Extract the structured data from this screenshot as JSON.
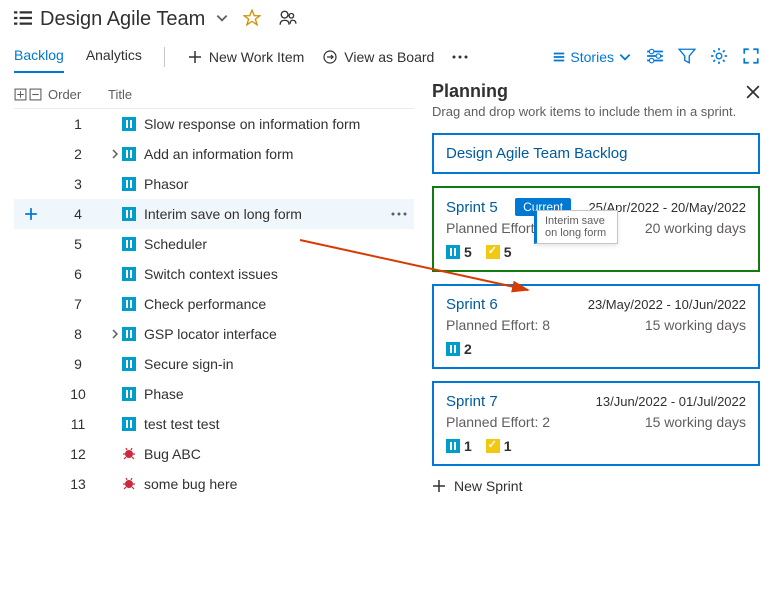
{
  "header": {
    "title": "Design Agile Team"
  },
  "tabs": {
    "backlog": "Backlog",
    "analytics": "Analytics"
  },
  "toolbar": {
    "new_work_item": "New Work Item",
    "view_as_board": "View as Board",
    "stories": "Stories"
  },
  "columns": {
    "order": "Order",
    "title": "Title"
  },
  "rows": [
    {
      "order": "1",
      "title": "Slow response on information form",
      "type": "story",
      "expandable": false,
      "selected": false
    },
    {
      "order": "2",
      "title": "Add an information form",
      "type": "story",
      "expandable": true,
      "selected": false
    },
    {
      "order": "3",
      "title": "Phasor",
      "type": "story",
      "expandable": false,
      "selected": false
    },
    {
      "order": "4",
      "title": "Interim save on long form",
      "type": "story",
      "expandable": false,
      "selected": true
    },
    {
      "order": "5",
      "title": "Scheduler",
      "type": "story",
      "expandable": false,
      "selected": false
    },
    {
      "order": "6",
      "title": "Switch context issues",
      "type": "story",
      "expandable": false,
      "selected": false
    },
    {
      "order": "7",
      "title": "Check performance",
      "type": "story",
      "expandable": false,
      "selected": false
    },
    {
      "order": "8",
      "title": "GSP locator interface",
      "type": "story",
      "expandable": true,
      "selected": false
    },
    {
      "order": "9",
      "title": "Secure sign-in",
      "type": "story",
      "expandable": false,
      "selected": false
    },
    {
      "order": "10",
      "title": "Phase",
      "type": "story",
      "expandable": false,
      "selected": false
    },
    {
      "order": "11",
      "title": "test test test",
      "type": "story",
      "expandable": false,
      "selected": false
    },
    {
      "order": "12",
      "title": "Bug ABC",
      "type": "bug",
      "expandable": false,
      "selected": false
    },
    {
      "order": "13",
      "title": "some bug here",
      "type": "bug",
      "expandable": false,
      "selected": false
    }
  ],
  "planning": {
    "title": "Planning",
    "subtitle": "Drag and drop work items to include them in a sprint.",
    "backlog_card": "Design Agile Team Backlog",
    "current_label": "Current",
    "new_sprint": "New Sprint",
    "drag_item": "Interim save on long form",
    "sprints": [
      {
        "name": "Sprint 5",
        "dates": "25/Apr/2022 - 20/May/2022",
        "effort": "Planned Effort: 20",
        "days": "20 working days",
        "stories": "5",
        "tasks": "5",
        "current": true
      },
      {
        "name": "Sprint 6",
        "dates": "23/May/2022 - 10/Jun/2022",
        "effort": "Planned Effort: 8",
        "days": "15 working days",
        "stories": "2",
        "tasks": "",
        "current": false
      },
      {
        "name": "Sprint 7",
        "dates": "13/Jun/2022 - 01/Jul/2022",
        "effort": "Planned Effort: 2",
        "days": "15 working days",
        "stories": "1",
        "tasks": "1",
        "current": false
      }
    ]
  },
  "colors": {
    "primary": "#0078d4",
    "green": "#107c10",
    "story": "#009ccc",
    "bug": "#cc293d",
    "task": "#f2c811"
  }
}
